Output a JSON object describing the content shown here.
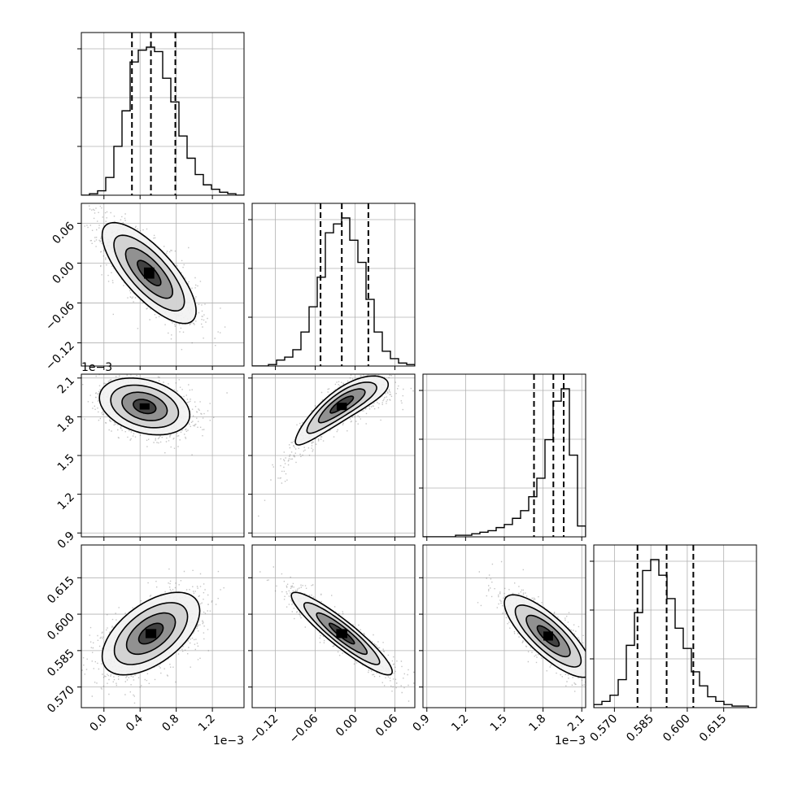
{
  "chart_data": {
    "type": "corner",
    "title": "",
    "n_params": 4,
    "parameters": [
      {
        "label": "",
        "range": [
          -0.00025,
          0.00155
        ],
        "ticks": [
          {
            "value": 0.0,
            "label": "0.0"
          },
          {
            "value": 0.0004,
            "label": "0.4"
          },
          {
            "value": 0.0008,
            "label": "0.8"
          },
          {
            "value": 0.0012,
            "label": "1.2"
          }
        ],
        "offset_text": "1e−3",
        "quantiles": [
          0.00031,
          0.00052,
          0.00079
        ],
        "hist": {
          "bin_start": -0.00025,
          "bin_width": 9e-05,
          "counts": [
            0,
            1,
            3,
            12,
            33,
            57,
            90,
            98,
            100,
            97,
            79,
            63,
            40,
            25,
            14,
            7,
            4,
            2,
            1,
            0
          ]
        }
      },
      {
        "label": "",
        "range": [
          -0.155,
          0.09
        ],
        "ticks": [
          {
            "value": -0.12,
            "label": "−0.12"
          },
          {
            "value": -0.06,
            "label": "−0.06"
          },
          {
            "value": 0.0,
            "label": "0.00"
          },
          {
            "value": 0.06,
            "label": "0.06"
          }
        ],
        "offset_text": "",
        "quantiles": [
          -0.052,
          -0.02,
          0.02
        ],
        "hist": {
          "bin_start": -0.155,
          "bin_width": 0.01225,
          "counts": [
            0,
            0,
            1,
            4,
            6,
            11,
            23,
            40,
            60,
            90,
            96,
            100,
            85,
            70,
            45,
            23,
            10,
            5,
            2,
            1
          ]
        }
      },
      {
        "label": "",
        "range": [
          0.00087,
          0.00213
        ],
        "ticks": [
          {
            "value": 0.0009,
            "label": "0.9"
          },
          {
            "value": 0.0012,
            "label": "1.2"
          },
          {
            "value": 0.0015,
            "label": "1.5"
          },
          {
            "value": 0.0018,
            "label": "1.8"
          },
          {
            "value": 0.0021,
            "label": "2.1"
          }
        ],
        "offset_text": "1e−3",
        "quantiles": [
          0.00173,
          0.00188,
          0.00196
        ],
        "hist": {
          "bin_start": 0.00087,
          "bin_width": 6.3e-05,
          "counts": [
            0,
            0,
            0,
            0,
            1,
            1,
            2,
            3,
            4,
            6,
            8,
            12,
            17,
            26,
            38,
            63,
            88,
            96,
            53,
            7
          ]
        }
      },
      {
        "label": "",
        "range": [
          0.5615,
          0.6285
        ],
        "ticks": [
          {
            "value": 0.57,
            "label": "0.570"
          },
          {
            "value": 0.585,
            "label": "0.585"
          },
          {
            "value": 0.6,
            "label": "0.600"
          },
          {
            "value": 0.615,
            "label": "0.615"
          }
        ],
        "offset_text": "",
        "quantiles": [
          0.5795,
          0.5915,
          0.6025
        ],
        "hist": {
          "bin_start": 0.5615,
          "bin_width": 0.00335,
          "counts": [
            2,
            4,
            8,
            18,
            40,
            61,
            88,
            95,
            85,
            70,
            51,
            38,
            23,
            14,
            7,
            4,
            2,
            1,
            1,
            0
          ]
        }
      }
    ],
    "pairs": [
      {
        "x": 0,
        "y": 1,
        "mean": [
          0.0005,
          -0.015
        ],
        "std": [
          0.00026,
          0.038
        ],
        "corr": -0.75
      },
      {
        "x": 0,
        "y": 2,
        "mean": [
          0.00045,
          0.00188
        ],
        "std": [
          0.00025,
          0.00011
        ],
        "corr": -0.3
      },
      {
        "x": 1,
        "y": 2,
        "mean": [
          -0.02,
          0.00188
        ],
        "std": [
          0.035,
          0.00013
        ],
        "corr": 0.85,
        "curvature": -0.22
      },
      {
        "x": 0,
        "y": 3,
        "mean": [
          0.00052,
          0.592
        ],
        "std": [
          0.00027,
          0.0085
        ],
        "corr": 0.55
      },
      {
        "x": 1,
        "y": 3,
        "mean": [
          -0.02,
          0.592
        ],
        "std": [
          0.038,
          0.0085
        ],
        "corr": -0.92
      },
      {
        "x": 2,
        "y": 3,
        "mean": [
          0.00184,
          0.591
        ],
        "std": [
          0.00017,
          0.0085
        ],
        "corr": -0.8
      }
    ],
    "contour_levels_sigma": [
      0.5,
      1.0,
      1.5,
      2.0
    ],
    "grid": true,
    "colors": {
      "line": "#000000",
      "grid": "#b0b0b0",
      "points": "#555555"
    }
  }
}
